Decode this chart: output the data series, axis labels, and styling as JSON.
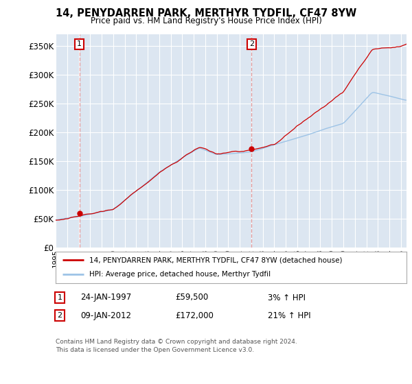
{
  "title": "14, PENYDARREN PARK, MERTHYR TYDFIL, CF47 8YW",
  "subtitle": "Price paid vs. HM Land Registry's House Price Index (HPI)",
  "xlim_start": 1995.0,
  "xlim_end": 2025.5,
  "ylim": [
    0,
    370000
  ],
  "yticks": [
    0,
    50000,
    100000,
    150000,
    200000,
    250000,
    300000,
    350000
  ],
  "ytick_labels": [
    "£0",
    "£50K",
    "£100K",
    "£150K",
    "£200K",
    "£250K",
    "£300K",
    "£350K"
  ],
  "transaction1_date": 1997.07,
  "transaction1_price": 59500,
  "transaction2_date": 2012.03,
  "transaction2_price": 172000,
  "legend_line1": "14, PENYDARREN PARK, MERTHYR TYDFIL, CF47 8YW (detached house)",
  "legend_line2": "HPI: Average price, detached house, Merthyr Tydfil",
  "note1_label": "1",
  "note1_date": "24-JAN-1997",
  "note1_price": "£59,500",
  "note1_hpi": "3% ↑ HPI",
  "note2_label": "2",
  "note2_date": "09-JAN-2012",
  "note2_price": "£172,000",
  "note2_hpi": "21% ↑ HPI",
  "footer": "Contains HM Land Registry data © Crown copyright and database right 2024.\nThis data is licensed under the Open Government Licence v3.0.",
  "bg_color": "#dce6f1",
  "grid_color": "#ffffff",
  "hpi_color": "#9dc3e6",
  "price_color": "#cc0000",
  "vline_color": "#e8a0a0"
}
